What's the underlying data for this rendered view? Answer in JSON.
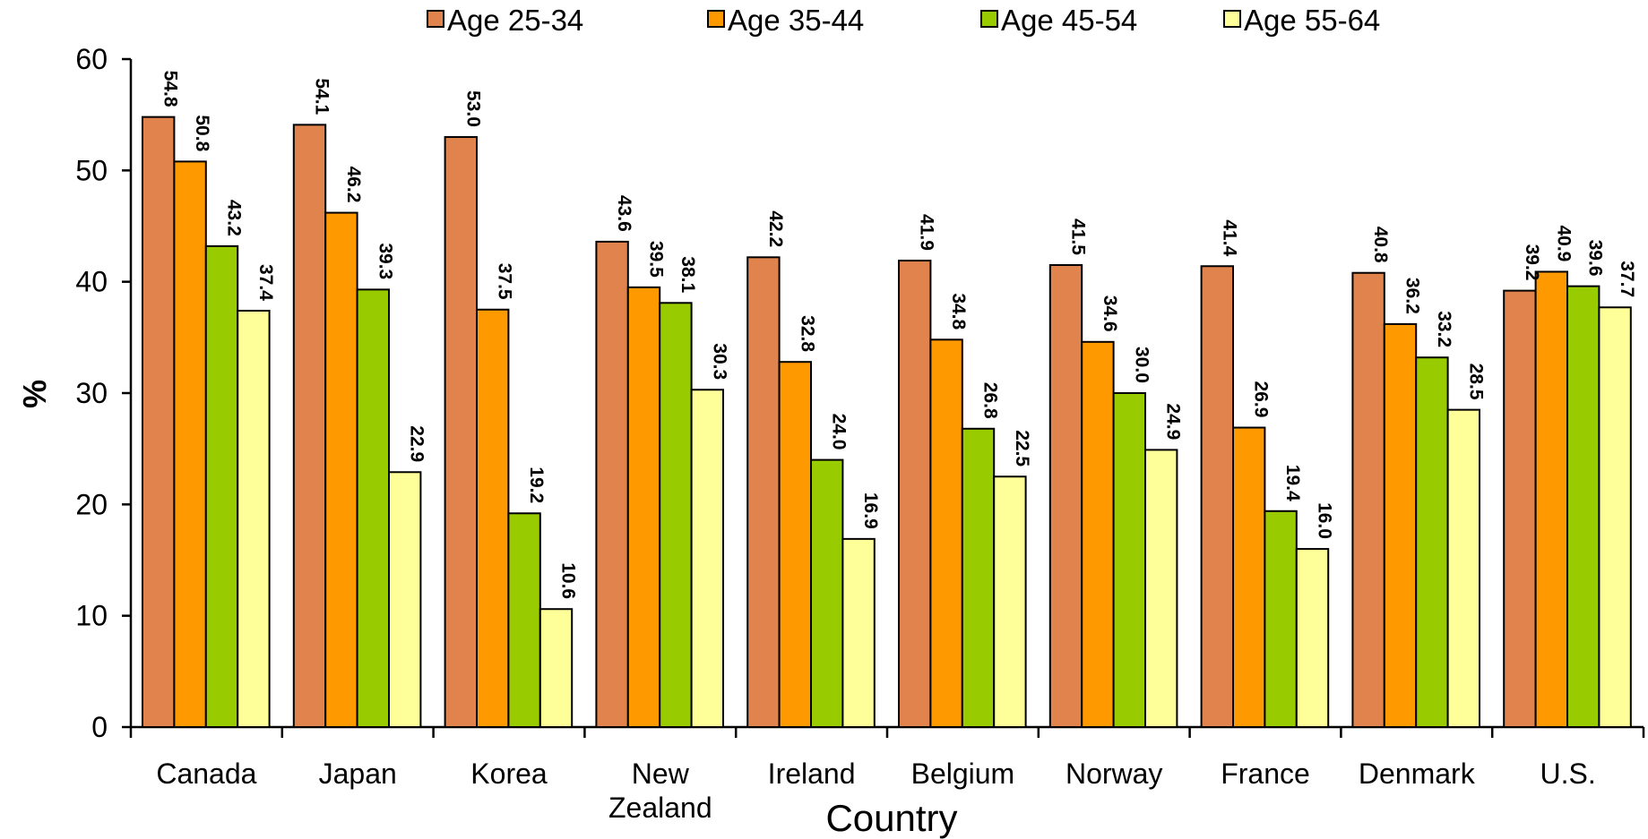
{
  "chart_data": {
    "type": "bar",
    "title": "",
    "xlabel": "Country",
    "ylabel": "%",
    "ylim": [
      0,
      60
    ],
    "yticks": [
      0,
      10,
      20,
      30,
      40,
      50,
      60
    ],
    "grid": false,
    "legend_position": "top",
    "categories": [
      [
        "Canada"
      ],
      [
        "Japan"
      ],
      [
        "Korea"
      ],
      [
        "New",
        "Zealand"
      ],
      [
        "Ireland"
      ],
      [
        "Belgium"
      ],
      [
        "Norway"
      ],
      [
        "France"
      ],
      [
        "Denmark"
      ],
      [
        "U.S."
      ]
    ],
    "series": [
      {
        "name": "Age 25-34",
        "color": "#e0834d",
        "values": [
          54.8,
          54.1,
          53.0,
          43.6,
          42.2,
          41.9,
          41.5,
          41.4,
          40.8,
          39.2
        ],
        "labels": [
          "54.8",
          "54.1",
          "53.0",
          "43.6",
          "42.2",
          "41.9",
          "41.5",
          "41.4",
          "40.8",
          "39.2"
        ]
      },
      {
        "name": "Age 35-44",
        "color": "#ff9900",
        "values": [
          50.8,
          46.2,
          37.5,
          39.5,
          32.8,
          34.8,
          34.6,
          26.9,
          36.2,
          40.9
        ],
        "labels": [
          "50.8",
          "46.2",
          "37.5",
          "39.5",
          "32.8",
          "34.8",
          "34.6",
          "26.9",
          "36.2",
          "40.9"
        ]
      },
      {
        "name": "Age 45-54",
        "color": "#99cc00",
        "values": [
          43.2,
          39.3,
          19.2,
          38.1,
          24.0,
          26.8,
          30.0,
          19.4,
          33.2,
          39.6
        ],
        "labels": [
          "43.2",
          "39.3",
          "19.2",
          "38.1",
          "24.0",
          "26.8",
          "30.0",
          "19.4",
          "33.2",
          "39.6"
        ]
      },
      {
        "name": "Age 55-64",
        "color": "#ffff99",
        "values": [
          37.4,
          22.9,
          10.6,
          30.3,
          16.9,
          22.5,
          24.9,
          16.0,
          28.5,
          37.7
        ],
        "labels": [
          "37.4",
          "22.9",
          "10.6",
          "30.3",
          "16.9",
          "22.5",
          "24.9",
          "16.0",
          "28.5",
          "37.7"
        ]
      }
    ]
  }
}
